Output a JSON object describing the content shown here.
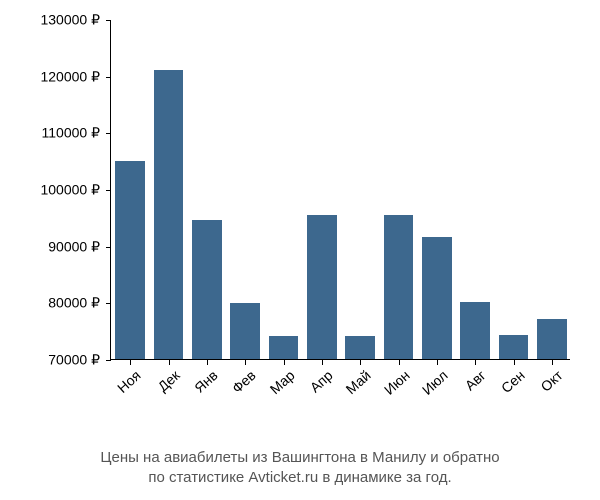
{
  "chart": {
    "type": "bar",
    "background_color": "#ffffff",
    "bar_color": "#3d688e",
    "axis_color": "#000000",
    "tick_fontsize": 14,
    "unit_symbol": "₽",
    "ylim": [
      70000,
      130000
    ],
    "ytick_step": 10000,
    "yticks": [
      {
        "value": 70000,
        "label": "70000 ₽"
      },
      {
        "value": 80000,
        "label": "80000 ₽"
      },
      {
        "value": 90000,
        "label": "90000 ₽"
      },
      {
        "value": 100000,
        "label": "100000 ₽"
      },
      {
        "value": 110000,
        "label": "110000 ₽"
      },
      {
        "value": 120000,
        "label": "120000 ₽"
      },
      {
        "value": 130000,
        "label": "130000 ₽"
      }
    ],
    "categories": [
      "Ноя",
      "Дек",
      "Янв",
      "Фев",
      "Мар",
      "Апр",
      "Май",
      "Июн",
      "Июл",
      "Авг",
      "Сен",
      "Окт"
    ],
    "values": [
      105000,
      121000,
      94500,
      79800,
      74000,
      95500,
      74000,
      95500,
      91500,
      80000,
      74200,
      77000
    ],
    "bar_width_ratio": 0.78,
    "x_label_rotation_deg": -42
  },
  "caption": {
    "line1": "Цены на авиабилеты из Вашингтона в Манилу и обратно",
    "line2": "по статистике Avticket.ru в динамике за год.",
    "color": "#555555",
    "fontsize": 15
  }
}
